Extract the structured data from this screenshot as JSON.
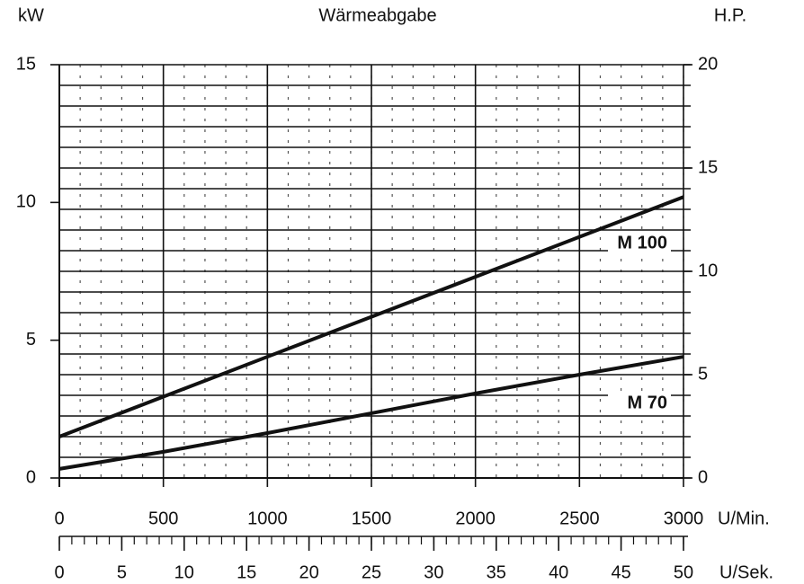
{
  "chart_data": {
    "type": "line",
    "title": "Wärmeabgabe",
    "y_label": "kW",
    "y2_label": "H.P.",
    "x_label": "U/Min.",
    "x2_label": "U/Sek.",
    "x": [
      0,
      500,
      1000,
      1500,
      2000,
      2500,
      3000
    ],
    "series": [
      {
        "name": "M 100",
        "color": "#111111",
        "values": [
          1.5,
          2.95,
          4.4,
          5.85,
          7.3,
          8.75,
          10.2
        ]
      },
      {
        "name": "M 70",
        "color": "#111111",
        "values": [
          0.33,
          0.95,
          1.63,
          2.35,
          3.07,
          3.75,
          4.4
        ]
      }
    ],
    "xlim": [
      0,
      3000
    ],
    "xticks": [
      0,
      500,
      1000,
      1500,
      2000,
      2500,
      3000
    ],
    "x_minor_step": 100,
    "ylim": [
      0,
      15
    ],
    "yticks": [
      0,
      5,
      10,
      15
    ],
    "y2lim": [
      0,
      20
    ],
    "y2ticks": [
      0,
      5,
      10,
      15,
      20
    ],
    "y2_minor_step": 1,
    "x2lim": [
      0,
      50
    ],
    "x2ticks": [
      0,
      5,
      10,
      15,
      20,
      25,
      30,
      35,
      40,
      45,
      50
    ],
    "x2_minor_step": 1,
    "grid": true
  }
}
